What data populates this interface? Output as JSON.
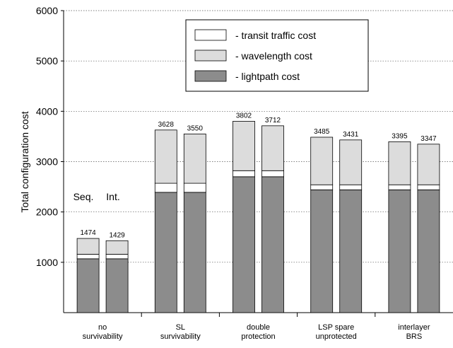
{
  "chart_data": {
    "type": "bar",
    "stacked": true,
    "ylabel": "Total configuration cost",
    "ylim": [
      0,
      6000
    ],
    "yticks": [
      1000,
      2000,
      3000,
      4000,
      5000,
      6000
    ],
    "grid": "horizontal dotted",
    "legend_position": "top-center",
    "categories": [
      [
        "no",
        "survivability"
      ],
      [
        "SL",
        "survivability"
      ],
      [
        "double",
        "protection"
      ],
      [
        "LSP spare",
        "unprotected"
      ],
      [
        "interlayer",
        "BRS"
      ]
    ],
    "bars_per_category": [
      "Seq.",
      "Int."
    ],
    "series": [
      {
        "name": "- lightpath cost",
        "color": "#8c8c8c",
        "values": [
          [
            1070,
            1070
          ],
          [
            2390,
            2390
          ],
          [
            2700,
            2700
          ],
          [
            2440,
            2440
          ],
          [
            2440,
            2440
          ]
        ]
      },
      {
        "name": "- transit traffic cost",
        "color": "#ffffff",
        "values": [
          [
            90,
            90
          ],
          [
            180,
            180
          ],
          [
            120,
            120
          ],
          [
            100,
            100
          ],
          [
            100,
            100
          ]
        ]
      },
      {
        "name": "- wavelength cost",
        "color": "#dcdcdc",
        "values": [
          [
            314,
            269
          ],
          [
            1058,
            980
          ],
          [
            982,
            892
          ],
          [
            945,
            891
          ],
          [
            855,
            807
          ]
        ]
      }
    ],
    "totals": [
      [
        1474,
        1429
      ],
      [
        3628,
        3550
      ],
      [
        3802,
        3712
      ],
      [
        3485,
        3431
      ],
      [
        3395,
        3347
      ]
    ],
    "annotations": [
      "Seq.",
      "Int."
    ]
  }
}
